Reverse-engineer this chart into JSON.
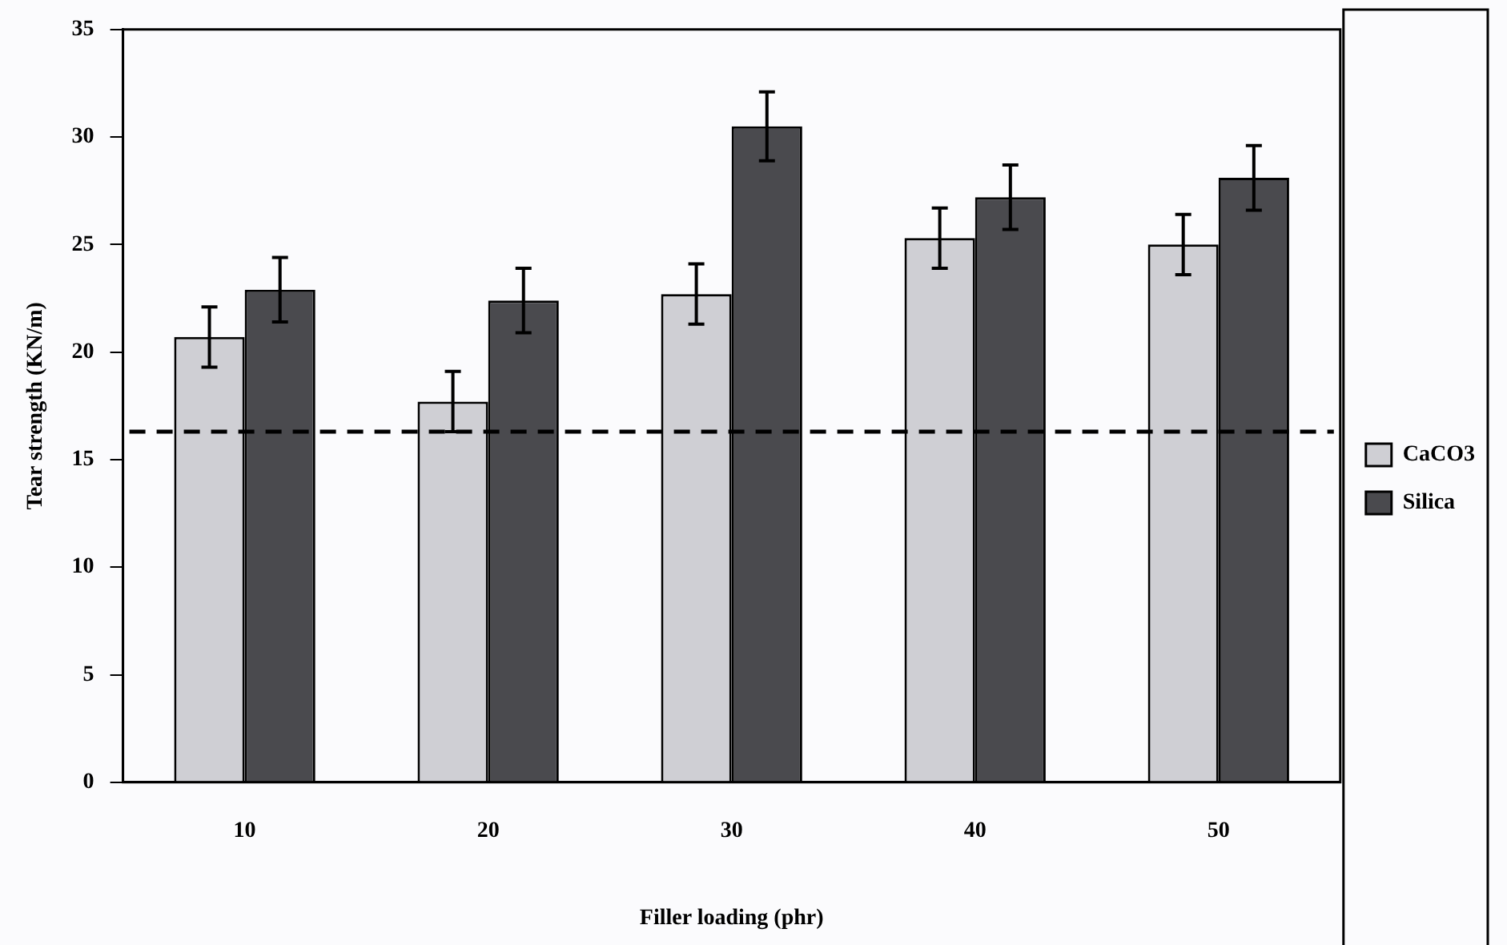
{
  "chart_data": {
    "type": "bar",
    "xlabel": "Filler loading (phr)",
    "ylabel": "Tear strength (KN/m)",
    "categories": [
      "10",
      "20",
      "30",
      "40",
      "50"
    ],
    "series": [
      {
        "name": "CaCO3",
        "color": "#cfcfd4",
        "values": [
          20.7,
          17.7,
          22.7,
          25.3,
          25.0
        ],
        "errors": [
          1.4,
          1.4,
          1.4,
          1.4,
          1.4
        ]
      },
      {
        "name": "Silica",
        "color": "#4a4a4e",
        "values": [
          22.9,
          22.4,
          30.5,
          27.2,
          28.1
        ],
        "errors": [
          1.5,
          1.5,
          1.6,
          1.5,
          1.5
        ]
      }
    ],
    "ylim": [
      0,
      35
    ],
    "yticks": [
      0,
      5,
      10,
      15,
      20,
      25,
      30,
      35
    ],
    "grid": false,
    "legend": "right",
    "ref_lines": [
      {
        "axis": "y",
        "value": 16.3,
        "line_style": "dashed",
        "color": "#000000"
      }
    ]
  }
}
